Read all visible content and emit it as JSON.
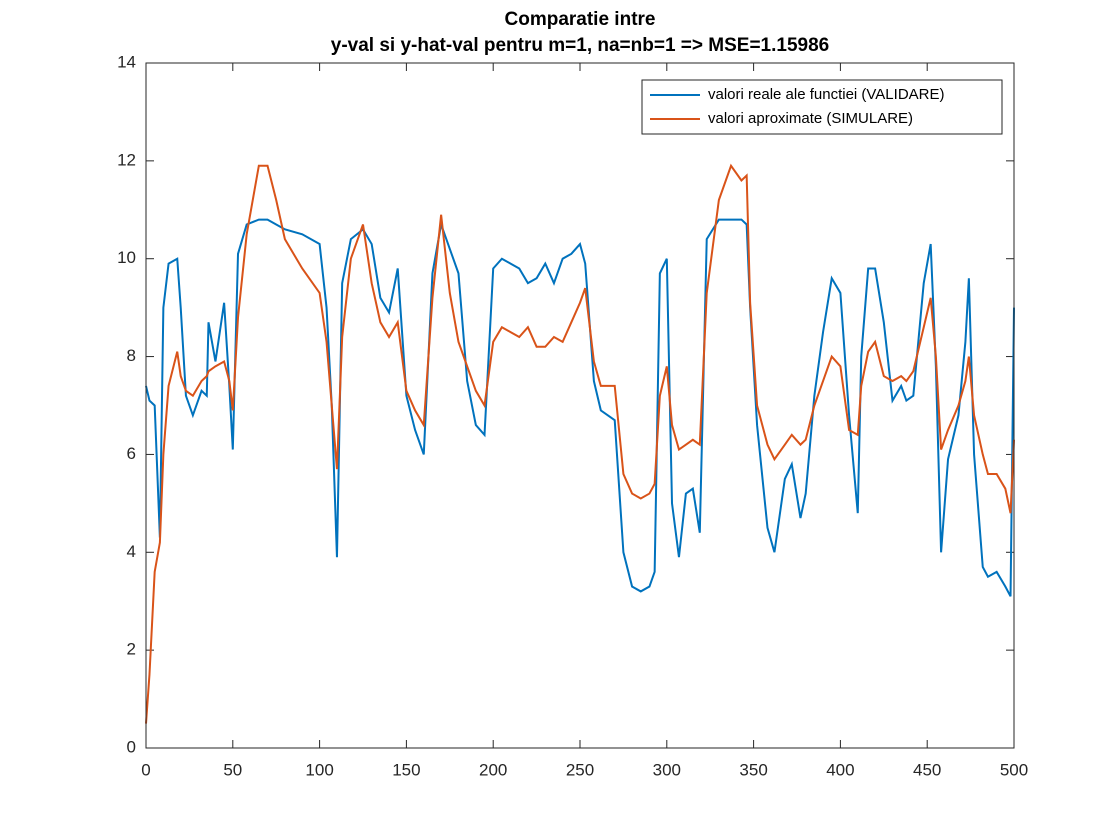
{
  "chart_data": {
    "type": "line",
    "title": [
      "Comparatie intre",
      "y-val si y-hat-val pentru m=1, na=nb=1 => MSE=1.15986"
    ],
    "x": [
      0,
      2,
      5,
      8,
      10,
      13,
      18,
      20,
      23,
      27,
      32,
      35,
      36,
      40,
      45,
      48,
      50,
      53,
      58,
      65,
      70,
      75,
      80,
      90,
      100,
      104,
      107,
      110,
      113,
      118,
      125,
      130,
      135,
      140,
      145,
      150,
      155,
      160,
      165,
      170,
      175,
      180,
      185,
      190,
      195,
      200,
      205,
      210,
      215,
      220,
      225,
      230,
      235,
      240,
      245,
      250,
      253,
      258,
      262,
      270,
      275,
      280,
      285,
      290,
      293,
      296,
      300,
      303,
      307,
      311,
      315,
      319,
      323,
      330,
      337,
      343,
      346,
      348,
      352,
      358,
      362,
      368,
      372,
      377,
      380,
      385,
      390,
      395,
      400,
      405,
      410,
      412,
      416,
      420,
      425,
      430,
      435,
      438,
      442,
      448,
      452,
      455,
      458,
      462,
      468,
      472,
      474,
      477,
      482,
      485,
      490,
      495,
      498,
      500
    ],
    "series": [
      {
        "name": "valori reale ale functiei (VALIDARE)",
        "color": "#0072bd",
        "values": [
          7.4,
          7.1,
          7.0,
          4.3,
          9.0,
          9.9,
          10.0,
          9.0,
          7.2,
          6.8,
          7.3,
          7.2,
          8.7,
          7.9,
          9.1,
          7.4,
          6.1,
          10.1,
          10.7,
          10.8,
          10.8,
          10.7,
          10.6,
          10.5,
          10.3,
          9.0,
          7.0,
          3.9,
          9.5,
          10.4,
          10.6,
          10.3,
          9.2,
          8.9,
          9.8,
          7.2,
          6.5,
          6.0,
          9.7,
          10.7,
          10.2,
          9.7,
          7.5,
          6.6,
          6.4,
          9.8,
          10.0,
          9.9,
          9.8,
          9.5,
          9.6,
          9.9,
          9.5,
          10.0,
          10.1,
          10.3,
          9.9,
          7.5,
          6.9,
          6.7,
          4.0,
          3.3,
          3.2,
          3.3,
          3.6,
          9.7,
          10.0,
          5.0,
          3.9,
          5.2,
          5.3,
          4.4,
          10.4,
          10.8,
          10.8,
          10.8,
          10.7,
          9.0,
          6.6,
          4.5,
          4.0,
          5.5,
          5.8,
          4.7,
          5.2,
          7.2,
          8.5,
          9.6,
          9.3,
          6.8,
          4.8,
          8.0,
          9.8,
          9.8,
          8.7,
          7.1,
          7.4,
          7.1,
          7.2,
          9.5,
          10.3,
          7.8,
          4.0,
          5.9,
          6.8,
          8.3,
          9.6,
          6.0,
          3.7,
          3.5,
          3.6,
          3.3,
          3.1,
          9.0
        ]
      },
      {
        "name": "valori aproximate (SIMULARE)",
        "color": "#d95319",
        "values": [
          0.5,
          1.5,
          3.6,
          4.2,
          6.0,
          7.4,
          8.1,
          7.6,
          7.3,
          7.2,
          7.5,
          7.6,
          7.7,
          7.8,
          7.9,
          7.5,
          6.9,
          8.8,
          10.5,
          11.9,
          11.9,
          11.2,
          10.4,
          9.8,
          9.3,
          8.3,
          7.0,
          5.7,
          8.4,
          10.0,
          10.7,
          9.5,
          8.7,
          8.4,
          8.7,
          7.3,
          6.9,
          6.6,
          9.2,
          10.9,
          9.3,
          8.3,
          7.8,
          7.3,
          7.0,
          8.3,
          8.6,
          8.5,
          8.4,
          8.6,
          8.2,
          8.2,
          8.4,
          8.3,
          8.7,
          9.1,
          9.4,
          7.9,
          7.4,
          7.4,
          5.6,
          5.2,
          5.1,
          5.2,
          5.4,
          7.2,
          7.8,
          6.6,
          6.1,
          6.2,
          6.3,
          6.2,
          9.3,
          11.2,
          11.9,
          11.6,
          11.7,
          9.1,
          7.0,
          6.2,
          5.9,
          6.2,
          6.4,
          6.2,
          6.3,
          7.0,
          7.5,
          8.0,
          7.8,
          6.5,
          6.4,
          7.4,
          8.1,
          8.3,
          7.6,
          7.5,
          7.6,
          7.5,
          7.7,
          8.6,
          9.2,
          8.0,
          6.1,
          6.5,
          7.0,
          7.5,
          8.0,
          6.8,
          6.0,
          5.6,
          5.6,
          5.3,
          4.8,
          6.3
        ]
      }
    ],
    "xlim": [
      0,
      500
    ],
    "xticks": [
      0,
      50,
      100,
      150,
      200,
      250,
      300,
      350,
      400,
      450,
      500
    ],
    "ylim": [
      0,
      14
    ],
    "yticks": [
      0,
      2,
      4,
      6,
      8,
      10,
      12,
      14
    ],
    "legend": "top-right"
  }
}
